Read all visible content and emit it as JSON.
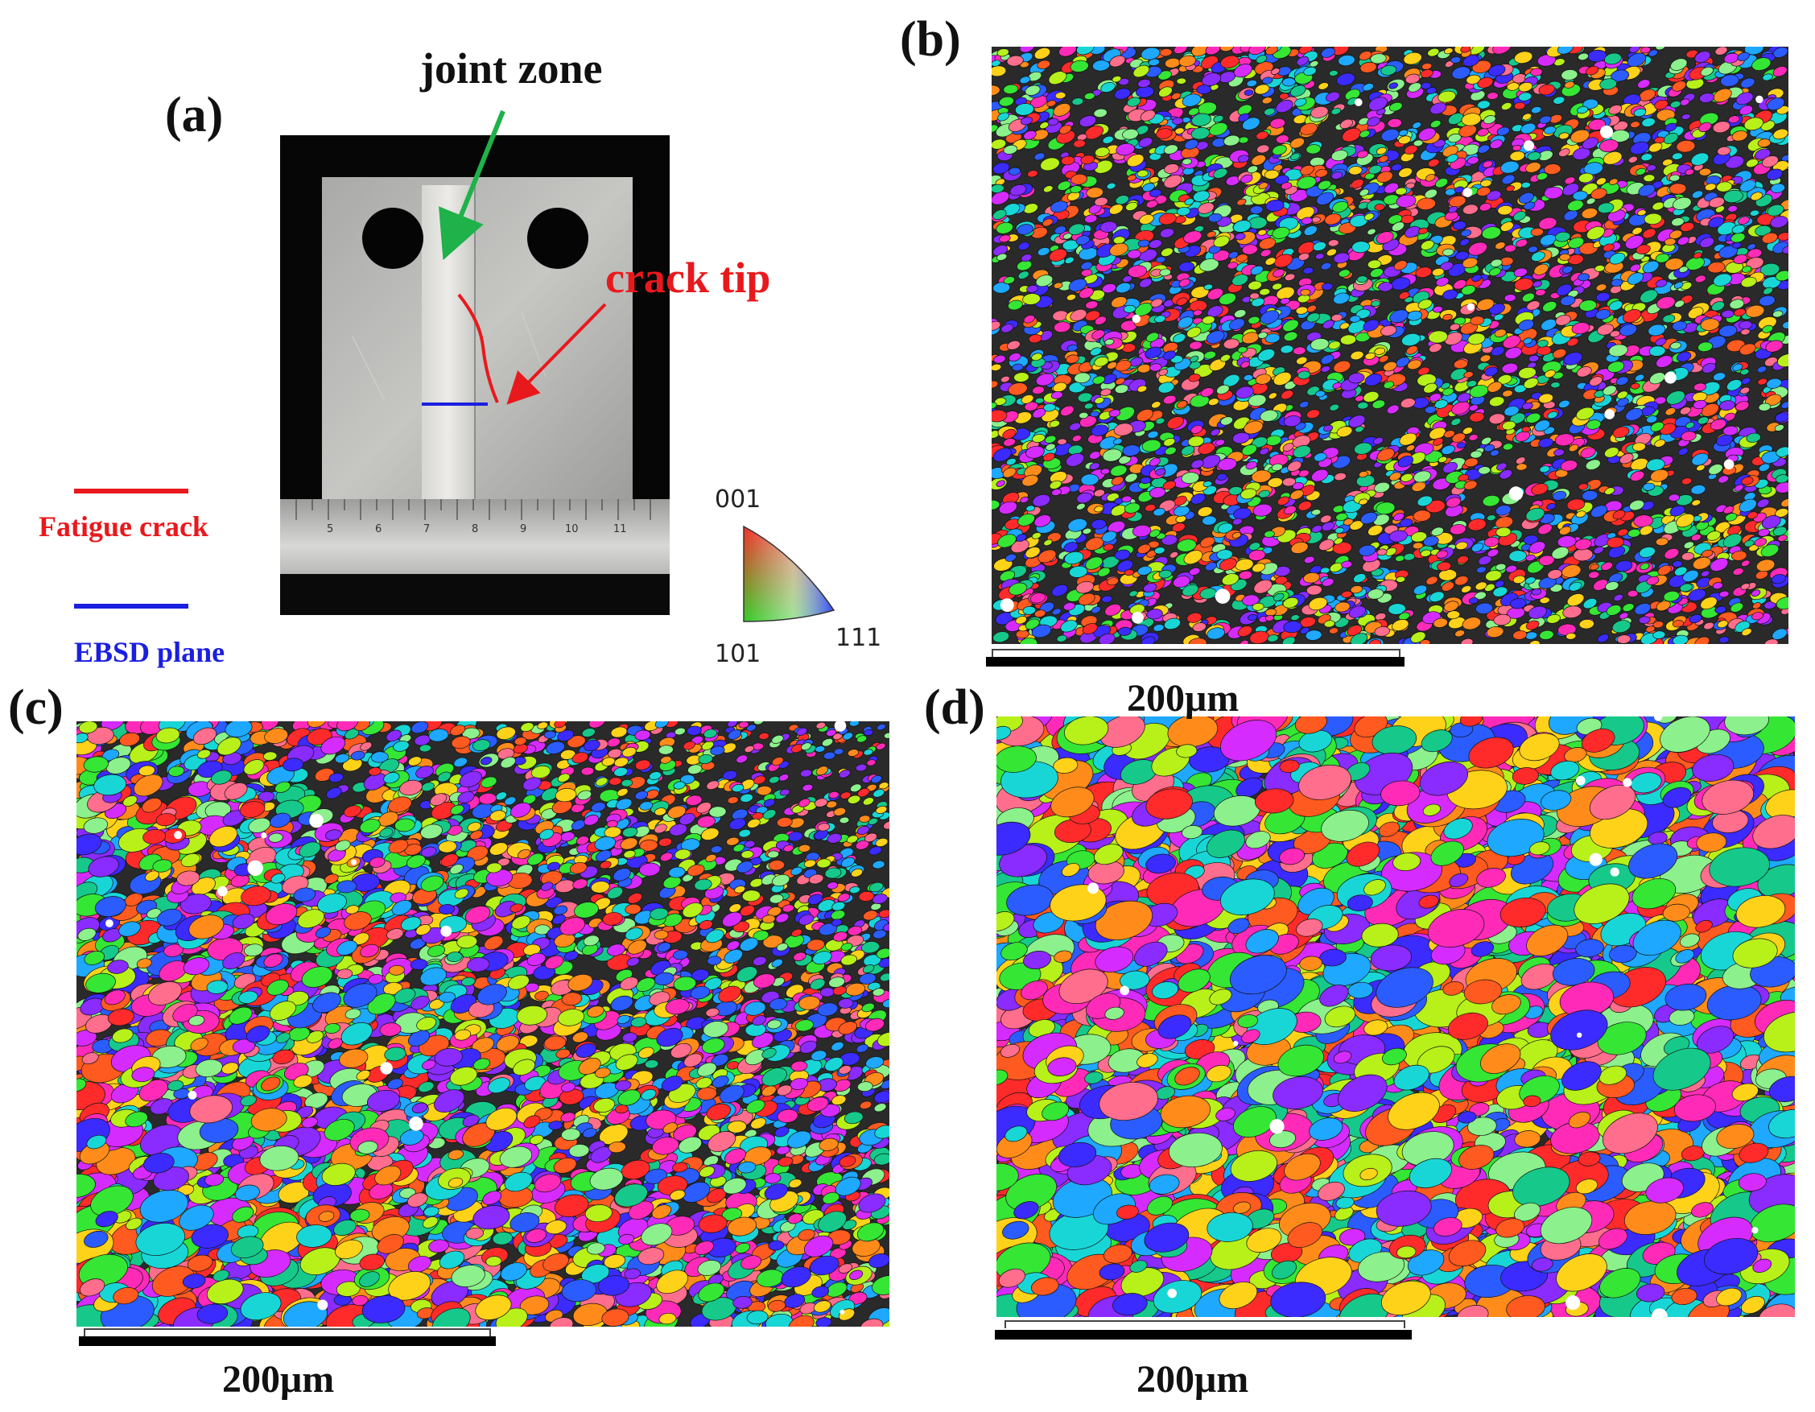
{
  "figure": {
    "panels": {
      "a": "(a)",
      "b": "(b)",
      "c": "(c)",
      "d": "(d)"
    },
    "photo": {
      "joint_zone_label": "joint zone",
      "crack_tip_label": "crack tip",
      "ruler_ticks": [
        "5",
        "6",
        "7",
        "8",
        "9",
        "10",
        "11"
      ]
    },
    "legend": {
      "fatigue_crack": "Fatigue crack",
      "ebsd_plane": "EBSD plane"
    },
    "ipf_key": {
      "top": "001",
      "left": "101",
      "right": "111"
    },
    "scale_bars": {
      "b": "200μm",
      "c": "200μm",
      "d": "200μm"
    },
    "colors": {
      "crack": "#e8191d",
      "ebsd_plane": "#1a1fe0",
      "joint_arrow": "#1fb24a",
      "text_dark": "#111111"
    }
  }
}
